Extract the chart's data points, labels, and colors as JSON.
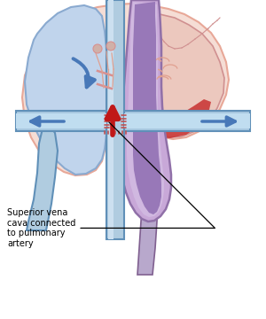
{
  "bg_color": "#ffffff",
  "heart_outer_fill": "#f5ddd5",
  "heart_outer_stroke": "#e8a898",
  "rv_fill": "#c0d4ec",
  "rv_stroke": "#8aaad0",
  "lv_fill": "#e8c8c0",
  "lv_stroke": "#d09090",
  "la_fill": "#eec8c0",
  "la_stroke": "#d09090",
  "svc_fill": "#b0cce0",
  "svc_stroke": "#6090b8",
  "svc_inner": "#cce0f0",
  "aorta_fill": "#c8a8d8",
  "aorta_stroke": "#9070a8",
  "aorta_inner": "#d8c0e8",
  "pa_fill": "#a8c8e0",
  "pa_stroke": "#6090b8",
  "pa_inner": "#c0ddf0",
  "ivc_fill": "#b0a0cc",
  "ivc_stroke": "#806090",
  "red_fill": "#c01818",
  "red_stroke": "#900000",
  "blue_arrow": "#4878b8",
  "red_arrow": "#c01818",
  "stitch_color": "#c05050",
  "valve_color": "#d89090",
  "chordae_color": "#e0a090",
  "label_text": "Superior vena\ncava connected\nto pulmonary\nartery",
  "label_fontsize": 7.0
}
